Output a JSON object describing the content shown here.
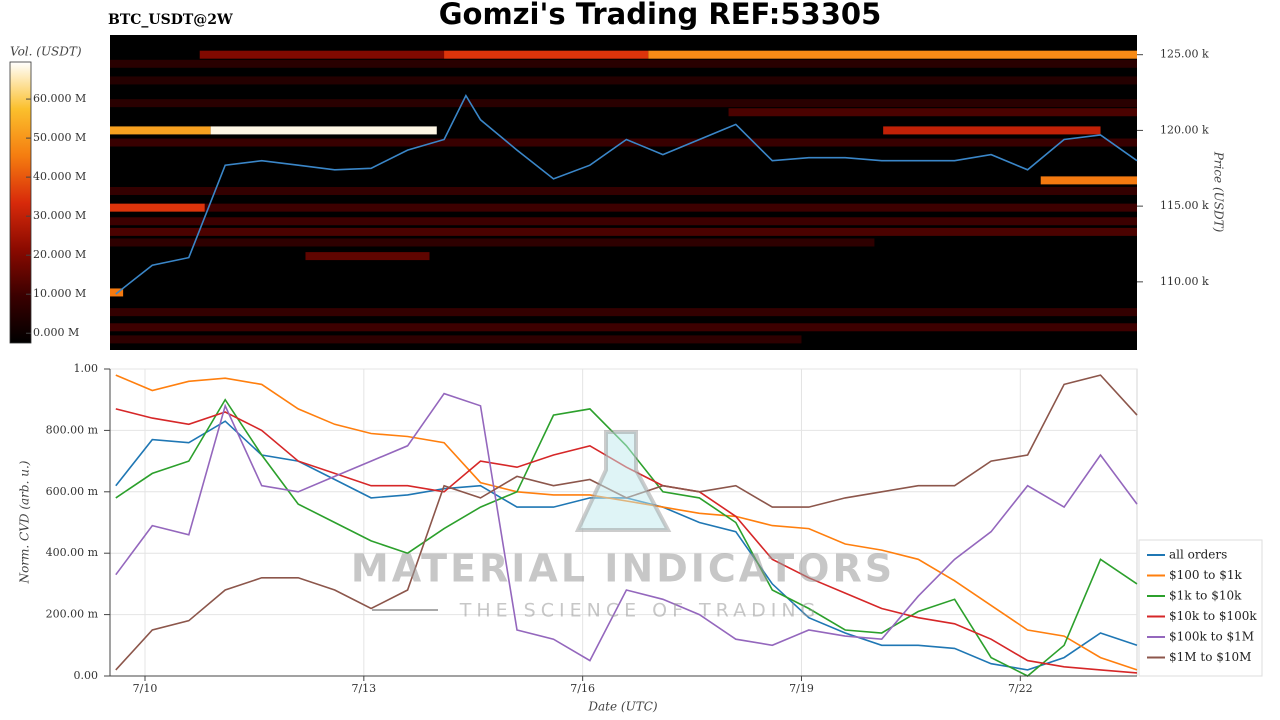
{
  "chart_data": [
    {
      "type": "heatmap",
      "title": "Gomzi's Trading REF:53305",
      "subtitle": "BTC_USDT@2W",
      "ylabel": "Price (USDT)",
      "colorbar_label": "Vol. (USDT)",
      "xlim": [
        9.52,
        23.6
      ],
      "ylim": [
        105500,
        126300
      ],
      "yticks": [
        {
          "value": 110000,
          "label": "110.00 k"
        },
        {
          "value": 115000,
          "label": "115.00 k"
        },
        {
          "value": 120000,
          "label": "120.00 k"
        },
        {
          "value": 125000,
          "label": "125.00 k"
        }
      ],
      "clim": [
        -2500000,
        69500000
      ],
      "cticks": [
        {
          "value": 0,
          "label": "0.000 M"
        },
        {
          "value": 10000000,
          "label": "10.000 M"
        },
        {
          "value": 20000000,
          "label": "20.000 M"
        },
        {
          "value": 30000000,
          "label": "30.000 M"
        },
        {
          "value": 40000000,
          "label": "40.000 M"
        },
        {
          "value": 50000000,
          "label": "50.000 M"
        },
        {
          "value": 60000000,
          "label": "60.000 M"
        }
      ],
      "colormap": [
        "#000000",
        "#3a0000",
        "#8b0a00",
        "#d82a0a",
        "#f57d10",
        "#fbc02d",
        "#ffffff"
      ],
      "cells": [
        {
          "price": 124400,
          "x0": 9.52,
          "x1": 23.6,
          "volume": 6000000
        },
        {
          "price": 125000,
          "x0": 10.75,
          "x1": 14.1,
          "volume": 20000000
        },
        {
          "price": 125000,
          "x0": 14.1,
          "x1": 16.9,
          "volume": 35000000
        },
        {
          "price": 125000,
          "x0": 16.9,
          "x1": 23.6,
          "volume": 48000000
        },
        {
          "price": 123300,
          "x0": 9.52,
          "x1": 23.6,
          "volume": 5000000
        },
        {
          "price": 121800,
          "x0": 9.52,
          "x1": 23.6,
          "volume": 6000000
        },
        {
          "price": 121200,
          "x0": 18.0,
          "x1": 23.6,
          "volume": 12000000
        },
        {
          "price": 120000,
          "x0": 9.52,
          "x1": 10.9,
          "volume": 52000000
        },
        {
          "price": 120000,
          "x0": 10.9,
          "x1": 14.0,
          "volume": 68000000
        },
        {
          "price": 120000,
          "x0": 20.12,
          "x1": 23.1,
          "volume": 30000000
        },
        {
          "price": 119200,
          "x0": 9.52,
          "x1": 23.6,
          "volume": 9000000
        },
        {
          "price": 116700,
          "x0": 22.28,
          "x1": 23.6,
          "volume": 45000000
        },
        {
          "price": 116000,
          "x0": 9.52,
          "x1": 23.6,
          "volume": 8000000
        },
        {
          "price": 114900,
          "x0": 9.52,
          "x1": 10.82,
          "volume": 35000000
        },
        {
          "price": 114900,
          "x0": 10.82,
          "x1": 23.6,
          "volume": 10000000
        },
        {
          "price": 114000,
          "x0": 9.52,
          "x1": 23.6,
          "volume": 10000000
        },
        {
          "price": 113300,
          "x0": 9.52,
          "x1": 23.6,
          "volume": 12000000
        },
        {
          "price": 112600,
          "x0": 9.52,
          "x1": 20.0,
          "volume": 7000000
        },
        {
          "price": 111700,
          "x0": 12.2,
          "x1": 13.9,
          "volume": 15000000
        },
        {
          "price": 109300,
          "x0": 9.52,
          "x1": 9.7,
          "volume": 45000000
        },
        {
          "price": 108000,
          "x0": 9.52,
          "x1": 23.6,
          "volume": 8000000
        },
        {
          "price": 107000,
          "x0": 9.52,
          "x1": 23.6,
          "volume": 10000000
        },
        {
          "price": 106200,
          "x0": 9.52,
          "x1": 19.0,
          "volume": 7000000
        }
      ],
      "line": {
        "color": "#3a86c8",
        "x": [
          9.6,
          10.1,
          10.6,
          11.1,
          11.6,
          12.1,
          12.6,
          13.1,
          13.6,
          14.1,
          14.4,
          14.6,
          15.1,
          15.6,
          16.1,
          16.6,
          17.1,
          17.6,
          18.1,
          18.6,
          19.1,
          19.6,
          20.1,
          20.6,
          21.1,
          21.6,
          22.1,
          22.6,
          23.1,
          23.6
        ],
        "values": [
          109200,
          111100,
          111600,
          117700,
          118000,
          117700,
          117400,
          117500,
          118700,
          119400,
          122300,
          120700,
          118700,
          116800,
          117700,
          119400,
          118400,
          119400,
          120400,
          118000,
          118200,
          118200,
          118000,
          118000,
          118000,
          118400,
          117400,
          119400,
          119700,
          118000
        ]
      }
    },
    {
      "type": "line",
      "xlabel": "Date (UTC)",
      "ylabel": "Norm. CVD (arb. u.)",
      "xlim": [
        9.52,
        23.6
      ],
      "ylim": [
        0,
        1
      ],
      "xticks": [
        {
          "value": 10,
          "label": "7/10"
        },
        {
          "value": 13,
          "label": "7/13"
        },
        {
          "value": 16,
          "label": "7/16"
        },
        {
          "value": 19,
          "label": "7/19"
        },
        {
          "value": 22,
          "label": "7/22"
        }
      ],
      "yticks": [
        {
          "value": 0,
          "label": "0.00"
        },
        {
          "value": 0.2,
          "label": "200.00 m"
        },
        {
          "value": 0.4,
          "label": "400.00 m"
        },
        {
          "value": 0.6,
          "label": "600.00 m"
        },
        {
          "value": 0.8,
          "label": "800.00 m"
        },
        {
          "value": 1,
          "label": "1.00"
        }
      ],
      "grid": true,
      "legend": "right",
      "x": [
        9.6,
        10.1,
        10.6,
        11.1,
        11.6,
        12.1,
        12.6,
        13.1,
        13.6,
        14.1,
        14.6,
        15.1,
        15.6,
        16.1,
        16.6,
        17.1,
        17.6,
        18.1,
        18.6,
        19.1,
        19.6,
        20.1,
        20.6,
        21.1,
        21.6,
        22.1,
        22.6,
        23.1,
        23.6
      ],
      "series": [
        {
          "name": "all orders",
          "color": "#1f77b4",
          "values": [
            0.62,
            0.77,
            0.76,
            0.83,
            0.72,
            0.7,
            0.64,
            0.58,
            0.59,
            0.61,
            0.62,
            0.55,
            0.55,
            0.58,
            0.58,
            0.55,
            0.5,
            0.47,
            0.3,
            0.19,
            0.14,
            0.1,
            0.1,
            0.09,
            0.04,
            0.02,
            0.06,
            0.14,
            0.1
          ]
        },
        {
          "name": "$100 to $1k",
          "color": "#ff7f0e",
          "values": [
            0.98,
            0.93,
            0.96,
            0.97,
            0.95,
            0.87,
            0.82,
            0.79,
            0.78,
            0.76,
            0.63,
            0.6,
            0.59,
            0.59,
            0.57,
            0.55,
            0.53,
            0.52,
            0.49,
            0.48,
            0.43,
            0.41,
            0.38,
            0.31,
            0.23,
            0.15,
            0.13,
            0.06,
            0.02
          ]
        },
        {
          "name": "$1k to $10k",
          "color": "#2ca02c",
          "values": [
            0.58,
            0.66,
            0.7,
            0.9,
            0.72,
            0.56,
            0.5,
            0.44,
            0.4,
            0.48,
            0.55,
            0.6,
            0.85,
            0.87,
            0.75,
            0.6,
            0.58,
            0.5,
            0.28,
            0.22,
            0.15,
            0.14,
            0.21,
            0.25,
            0.06,
            0.0,
            0.1,
            0.38,
            0.3
          ]
        },
        {
          "name": "$10k to $100k",
          "color": "#d62728",
          "values": [
            0.87,
            0.84,
            0.82,
            0.86,
            0.8,
            0.7,
            0.66,
            0.62,
            0.62,
            0.6,
            0.7,
            0.68,
            0.72,
            0.75,
            0.68,
            0.62,
            0.6,
            0.52,
            0.38,
            0.32,
            0.27,
            0.22,
            0.19,
            0.17,
            0.12,
            0.05,
            0.03,
            0.02,
            0.01
          ]
        },
        {
          "name": "$100k to $1M",
          "color": "#9467bd",
          "values": [
            0.33,
            0.49,
            0.46,
            0.88,
            0.62,
            0.6,
            0.65,
            0.7,
            0.75,
            0.92,
            0.88,
            0.15,
            0.12,
            0.05,
            0.28,
            0.25,
            0.2,
            0.12,
            0.1,
            0.15,
            0.13,
            0.12,
            0.26,
            0.38,
            0.47,
            0.62,
            0.55,
            0.72,
            0.56
          ]
        },
        {
          "name": "$1M to $10M",
          "color": "#8c564b",
          "values": [
            0.02,
            0.15,
            0.18,
            0.28,
            0.32,
            0.32,
            0.28,
            0.22,
            0.28,
            0.62,
            0.58,
            0.65,
            0.62,
            0.64,
            0.58,
            0.62,
            0.6,
            0.62,
            0.55,
            0.55,
            0.58,
            0.6,
            0.62,
            0.62,
            0.7,
            0.72,
            0.95,
            0.98,
            0.85
          ]
        }
      ]
    }
  ],
  "watermark": {
    "title": "MATERIAL INDICATORS",
    "subtitle": "THE SCIENCE OF TRADING"
  }
}
